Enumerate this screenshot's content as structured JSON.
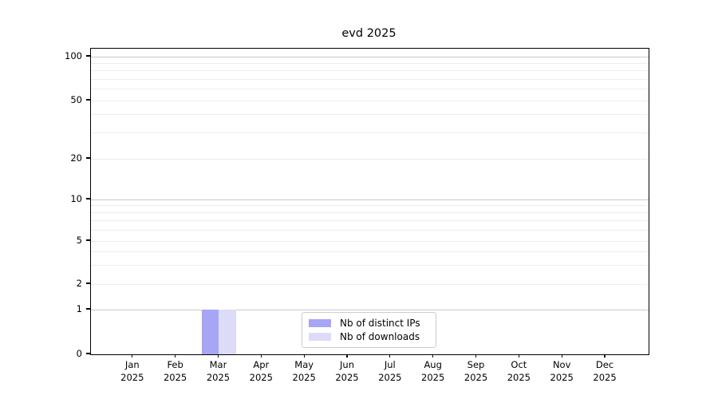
{
  "title": "evd 2025",
  "chart_data": {
    "type": "bar",
    "title": "evd 2025",
    "categories": [
      "Jan 2025",
      "Feb 2025",
      "Mar 2025",
      "Apr 2025",
      "May 2025",
      "Jun 2025",
      "Jul 2025",
      "Aug 2025",
      "Sep 2025",
      "Oct 2025",
      "Nov 2025",
      "Dec 2025"
    ],
    "series": [
      {
        "name": "Nb of distinct IPs",
        "color": "#a6a6f4",
        "values": [
          0,
          0,
          1,
          0,
          0,
          0,
          0,
          0,
          0,
          0,
          0,
          0
        ]
      },
      {
        "name": "Nb of downloads",
        "color": "#dcdcf8",
        "values": [
          0,
          0,
          1,
          0,
          0,
          0,
          0,
          0,
          0,
          0,
          0,
          0
        ]
      }
    ],
    "xlabel": "",
    "ylabel": "",
    "yscale": "symlog",
    "yticks": [
      0,
      1,
      2,
      5,
      10,
      20,
      50,
      100
    ],
    "minor_gridline_values": [
      3,
      4,
      6,
      7,
      8,
      9,
      30,
      40,
      60,
      70,
      80,
      90
    ],
    "major_gridline_values": [
      1,
      10,
      100
    ],
    "ylim": [
      0,
      120
    ],
    "grid": "horizontal",
    "legend_position": "lower center inside plot"
  }
}
